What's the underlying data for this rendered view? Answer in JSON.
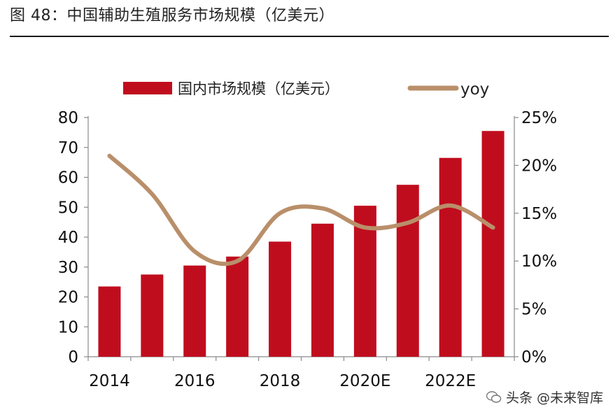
{
  "figure": {
    "number": "图 48：",
    "title": "中国辅助生殖服务市场规模（亿美元）"
  },
  "chart_data": {
    "type": "bar+line",
    "title": "中国辅助生殖服务市场规模（亿美元）",
    "categories": [
      "2014",
      "2015",
      "2016",
      "2017",
      "2018",
      "2019",
      "2020E",
      "2021E",
      "2022E",
      "2023E"
    ],
    "x_tick_labels": [
      "2014",
      "",
      "2016",
      "",
      "2018",
      "",
      "2020E",
      "",
      "2022E",
      ""
    ],
    "series": [
      {
        "name": "国内市场规模（亿美元）",
        "type": "bar",
        "axis": "left",
        "color": "#c00d1e",
        "values": [
          23.5,
          27.5,
          30.5,
          33.5,
          38.5,
          44.5,
          50.5,
          57.5,
          66.5,
          75.5
        ]
      },
      {
        "name": "yoy",
        "type": "line",
        "axis": "right",
        "color": "#b98f6a",
        "unit": "%",
        "values": [
          21.0,
          17.0,
          11.0,
          10.0,
          15.0,
          15.5,
          13.5,
          14.0,
          15.8,
          13.5
        ]
      }
    ],
    "y_left": {
      "min": 0,
      "max": 80,
      "ticks": [
        0,
        10,
        20,
        30,
        40,
        50,
        60,
        70,
        80
      ]
    },
    "y_right": {
      "min": 0,
      "max": 25,
      "ticks": [
        "0%",
        "5%",
        "10%",
        "15%",
        "20%",
        "25%"
      ]
    },
    "legend_position": "top"
  },
  "watermark": "头条 @未来智库",
  "watermark_icon": "wechat-icon"
}
